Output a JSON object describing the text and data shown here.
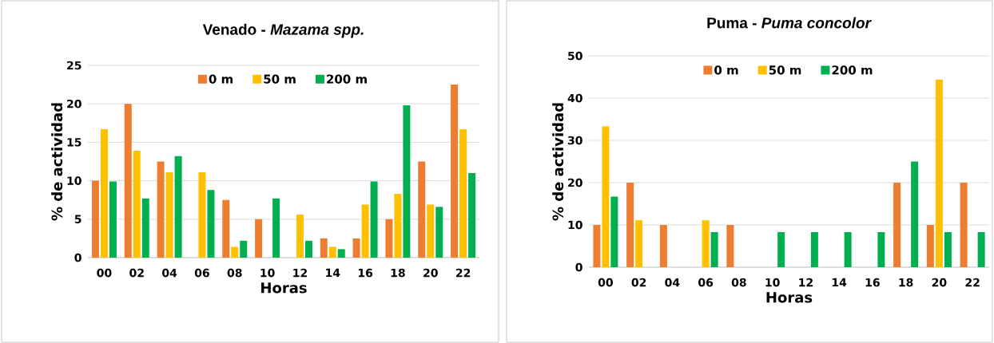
{
  "chart_data": [
    {
      "type": "bar",
      "title": "Venado - *Mazama spp.*",
      "xlabel": "Horas",
      "ylabel": "% de actividad",
      "categories": [
        "00",
        "02",
        "04",
        "06",
        "08",
        "10",
        "12",
        "14",
        "16",
        "18",
        "20",
        "22"
      ],
      "series": [
        {
          "name": "0 m",
          "color": "#ed7d31",
          "values": [
            10,
            20,
            12.5,
            0,
            7.5,
            5,
            0,
            2.5,
            2.5,
            5,
            12.5,
            22.5
          ]
        },
        {
          "name": "50 m",
          "color": "#ffc000",
          "values": [
            16.7,
            13.9,
            11.1,
            11.1,
            1.4,
            0,
            5.6,
            1.4,
            6.9,
            8.3,
            6.9,
            16.7
          ]
        },
        {
          "name": "200 m",
          "color": "#00b050",
          "values": [
            9.9,
            7.7,
            13.2,
            8.8,
            2.2,
            7.7,
            2.2,
            1.1,
            9.9,
            19.8,
            6.6,
            11.0
          ]
        }
      ],
      "ylim": [
        0,
        25
      ],
      "yticks": [
        0,
        5,
        10,
        15,
        20,
        25
      ],
      "grid": "y",
      "legend": "top"
    },
    {
      "type": "bar",
      "title": "Puma - *Puma concolor*",
      "xlabel": "Horas",
      "ylabel": "% de actividad",
      "categories": [
        "00",
        "02",
        "04",
        "06",
        "08",
        "10",
        "12",
        "14",
        "16",
        "18",
        "20",
        "22"
      ],
      "series": [
        {
          "name": "0 m",
          "color": "#ed7d31",
          "values": [
            10,
            20,
            10,
            0,
            10,
            0,
            0,
            0,
            0,
            20,
            10,
            20
          ]
        },
        {
          "name": "50 m",
          "color": "#ffc000",
          "values": [
            33.3,
            11.1,
            0,
            11.1,
            0,
            0,
            0,
            0,
            0,
            0,
            44.4,
            0
          ]
        },
        {
          "name": "200 m",
          "color": "#00b050",
          "values": [
            16.7,
            0,
            0,
            8.3,
            0,
            8.3,
            8.3,
            8.3,
            8.3,
            25,
            8.3,
            8.3
          ]
        }
      ],
      "ylim": [
        0,
        50
      ],
      "yticks": [
        0,
        10,
        20,
        30,
        40,
        50
      ],
      "grid": "y",
      "legend": "top"
    }
  ]
}
